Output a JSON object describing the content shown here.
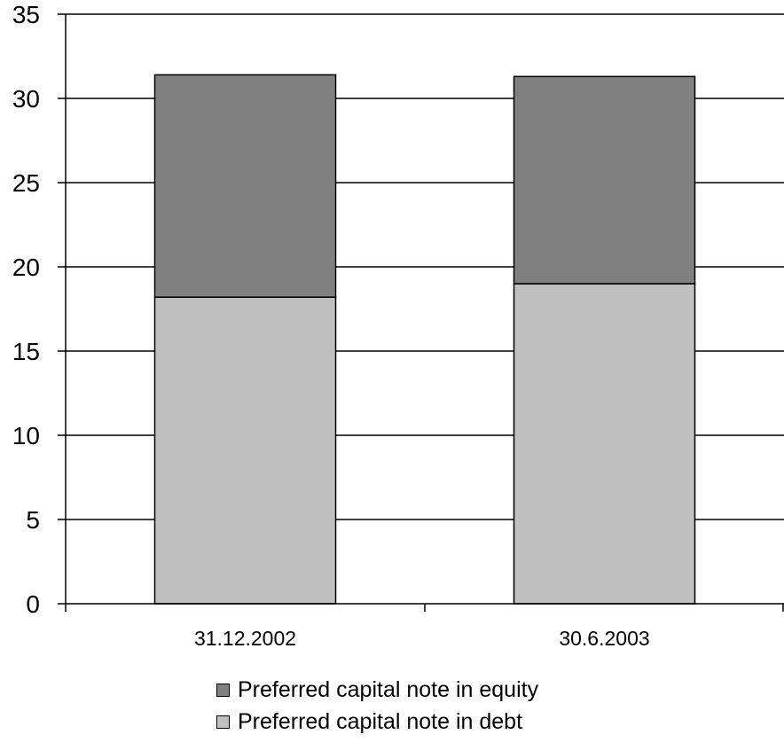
{
  "chart_data": {
    "type": "bar",
    "stacked": true,
    "categories": [
      "31.12.2002",
      "30.6.2003"
    ],
    "series": [
      {
        "name": "Preferred capital note in debt",
        "values": [
          18.2,
          19.0
        ],
        "color": "#c0c0c0"
      },
      {
        "name": "Preferred capital note in equity",
        "values": [
          13.2,
          12.3
        ],
        "color": "#808080"
      }
    ],
    "title": "",
    "xlabel": "",
    "ylabel": "",
    "ylim": [
      0,
      35
    ],
    "yticks": [
      0,
      5,
      10,
      15,
      20,
      25,
      30,
      35
    ],
    "grid": true,
    "legend_position": "bottom",
    "legend_order": [
      "Preferred capital note in equity",
      "Preferred capital note in debt"
    ]
  }
}
